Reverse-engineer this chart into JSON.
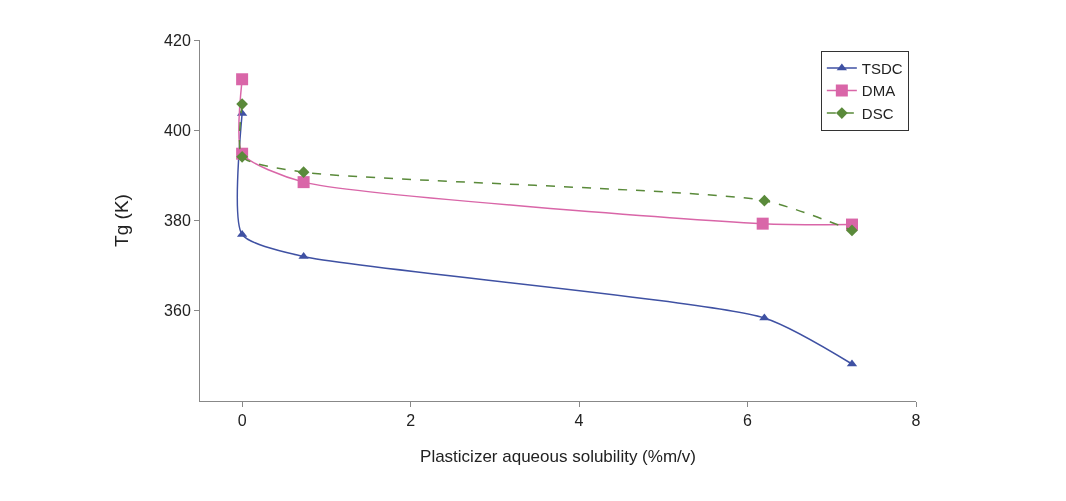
{
  "chart_data": {
    "type": "line",
    "xlabel": "Plasticizer aqueous solubility (%m/v)",
    "ylabel": "Tg (K)",
    "xlim": [
      -0.5,
      8
    ],
    "xticks": [
      0,
      2,
      4,
      6,
      8
    ],
    "ylim": [
      340,
      420
    ],
    "yticks": [
      360,
      380,
      400,
      420
    ],
    "grid": false,
    "legend": "top right",
    "series": [
      {
        "name": "TSDC",
        "color": "#3f51a3",
        "marker": "triangle",
        "line_style": "solid",
        "x": [
          0,
          0,
          0.73,
          6.2,
          7.24
        ],
        "values": [
          403.7,
          376.9,
          372.0,
          358.4,
          348.2
        ]
      },
      {
        "name": "DMA",
        "color": "#d966a8",
        "marker": "square",
        "line_style": "solid",
        "x": [
          0,
          0,
          0.73,
          6.18,
          7.24
        ],
        "values": [
          411.3,
          394.8,
          388.5,
          379.3,
          379.1
        ]
      },
      {
        "name": "DSC",
        "color": "#5a8a3a",
        "marker": "diamond",
        "line_style": "dashed",
        "x": [
          0,
          0,
          0.73,
          6.2,
          7.24
        ],
        "values": [
          405.8,
          394.1,
          390.7,
          384.4,
          377.8
        ]
      }
    ]
  }
}
